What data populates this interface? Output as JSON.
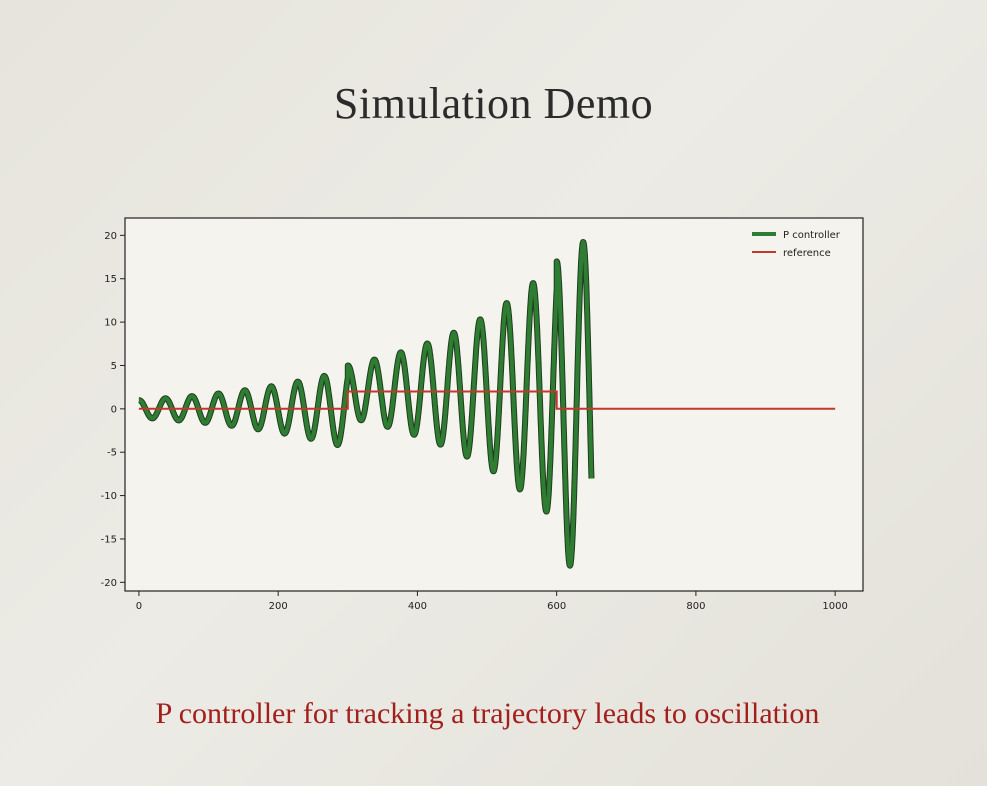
{
  "slide": {
    "title": "Simulation Demo",
    "caption": "P controller for tracking a trajectory leads to oscillation"
  },
  "colors": {
    "p_controller": "#2e7d32",
    "reference": "#c0392b",
    "caption": "#a31f1c"
  },
  "chart_data": {
    "type": "line",
    "title": "",
    "xlabel": "",
    "ylabel": "",
    "xlim": [
      -20,
      1040
    ],
    "ylim": [
      -21,
      22
    ],
    "x_ticks": [
      0,
      200,
      400,
      600,
      800,
      1000
    ],
    "y_ticks": [
      20,
      15,
      10,
      5,
      0,
      -5,
      -10,
      -15,
      -20
    ],
    "grid": false,
    "legend_position": "top-right",
    "series": [
      {
        "name": "P controller",
        "color": "#2e7d32",
        "segments": [
          {
            "x_start": 0,
            "x_end": 300,
            "reference": 0,
            "amplitude_start": 1.0,
            "amplitude_end": 4.5
          },
          {
            "x_start": 300,
            "x_end": 600,
            "reference": 2,
            "amplitude_start": 3.0,
            "amplitude_end": 15.0
          },
          {
            "x_start": 600,
            "x_end": 650,
            "reference": 0,
            "amplitude_start": 17.0,
            "amplitude_end": 20.0
          }
        ],
        "period": 38
      },
      {
        "name": "reference",
        "color": "#c0392b",
        "x": [
          0,
          300,
          300,
          600,
          600,
          1000
        ],
        "y": [
          0,
          0,
          2,
          2,
          0,
          0
        ]
      }
    ]
  }
}
